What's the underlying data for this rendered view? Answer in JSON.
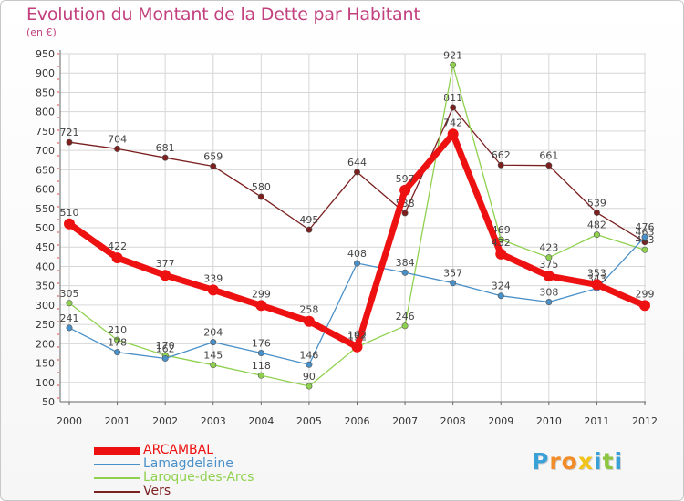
{
  "title": "Evolution du Montant de la Dette par Habitant",
  "unit": "(en €)",
  "brand": {
    "text": "Proxiti",
    "letters": [
      "P",
      "r",
      "o",
      "x",
      "i",
      "t",
      "i"
    ],
    "colors": [
      "#3aa0d8",
      "#f28c28",
      "#f28c28",
      "#f2c318",
      "#3aa0d8",
      "#8cc63f",
      "#3aa0d8"
    ]
  },
  "chart_data": {
    "type": "line",
    "title": "Evolution du Montant de la Dette par Habitant",
    "ylabel": "(en €)",
    "xlabel": "",
    "categories": [
      "2000",
      "2001",
      "2002",
      "2003",
      "2004",
      "2005",
      "2006",
      "2007",
      "2008",
      "2009",
      "2010",
      "2011",
      "2012"
    ],
    "ylim": [
      50,
      950
    ],
    "yticks": [
      50,
      100,
      150,
      200,
      250,
      300,
      350,
      400,
      450,
      500,
      550,
      600,
      650,
      700,
      750,
      800,
      850,
      900,
      950
    ],
    "grid": true,
    "legend_position": "bottom-left",
    "series": [
      {
        "name": "Vers",
        "color": "#7b1f1f",
        "values": [
          721,
          704,
          681,
          659,
          580,
          495,
          644,
          538,
          811,
          662,
          661,
          539,
          463
        ]
      },
      {
        "name": "Laroque-des-Arcs",
        "color": "#8fd14f",
        "values": [
          305,
          210,
          170,
          145,
          118,
          90,
          192,
          246,
          921,
          469,
          423,
          482,
          443
        ]
      },
      {
        "name": "Lamagdelaine",
        "color": "#4a90c8",
        "values": [
          241,
          178,
          162,
          204,
          176,
          146,
          408,
          384,
          357,
          324,
          308,
          343,
          476
        ]
      },
      {
        "name": "ARCAMBAL",
        "color": "#ee1111",
        "values": [
          510,
          422,
          377,
          339,
          299,
          258,
          192,
          597,
          742,
          432,
          375,
          353,
          299
        ]
      }
    ]
  }
}
